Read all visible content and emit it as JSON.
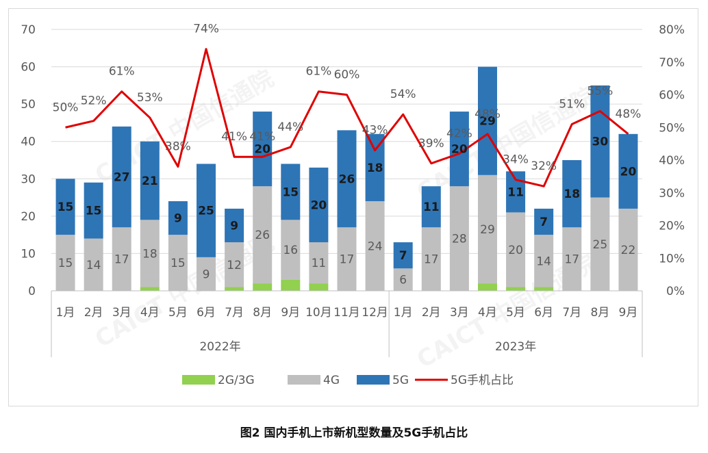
{
  "caption": "图2 国内手机上市新机型数量及5G手机占比",
  "watermark_text": "CAICT 中国信通院",
  "chart_data": {
    "type": "bar",
    "stacked": true,
    "categories": [
      "1月",
      "2月",
      "3月",
      "4月",
      "5月",
      "6月",
      "7月",
      "8月",
      "9月",
      "10月",
      "11月",
      "12月",
      "1月",
      "2月",
      "3月",
      "4月",
      "5月",
      "6月",
      "7月",
      "8月",
      "9月"
    ],
    "groups": [
      {
        "label": "2022年",
        "start": 0,
        "end": 11
      },
      {
        "label": "2023年",
        "start": 12,
        "end": 20
      }
    ],
    "series": [
      {
        "name": "2G/3G",
        "color": "#92d050",
        "values": [
          0,
          0,
          0,
          1,
          0,
          0,
          1,
          2,
          3,
          2,
          0,
          0,
          0,
          0,
          0,
          2,
          1,
          1,
          0,
          0,
          0
        ]
      },
      {
        "name": "4G",
        "color": "#bfbfbf",
        "values": [
          15,
          14,
          17,
          18,
          15,
          9,
          12,
          26,
          16,
          11,
          17,
          24,
          6,
          17,
          28,
          29,
          20,
          14,
          17,
          25,
          22
        ]
      },
      {
        "name": "5G",
        "color": "#2e75b6",
        "values": [
          15,
          15,
          27,
          21,
          9,
          25,
          9,
          20,
          15,
          20,
          26,
          18,
          7,
          11,
          20,
          29,
          11,
          7,
          18,
          30,
          20
        ]
      }
    ],
    "line_series": {
      "name": "5G手机占比",
      "color": "#e00000",
      "values": [
        50,
        52,
        61,
        53,
        38,
        74,
        41,
        41,
        44,
        61,
        60,
        43,
        54,
        39,
        42,
        48,
        34,
        32,
        51,
        55,
        48
      ],
      "axis": "right"
    },
    "y_left": {
      "min": 0,
      "max": 70,
      "ticks": [
        "0",
        "10",
        "20",
        "30",
        "40",
        "50",
        "60",
        "70"
      ]
    },
    "y_right": {
      "min": 0,
      "max": 80,
      "ticks": [
        "0%",
        "10%",
        "20%",
        "30%",
        "40%",
        "50%",
        "60%",
        "70%",
        "80%"
      ]
    },
    "grid": true,
    "legend": "bottom",
    "legend_labels": [
      "2G/3G",
      "4G",
      "5G",
      "5G手机占比"
    ]
  }
}
